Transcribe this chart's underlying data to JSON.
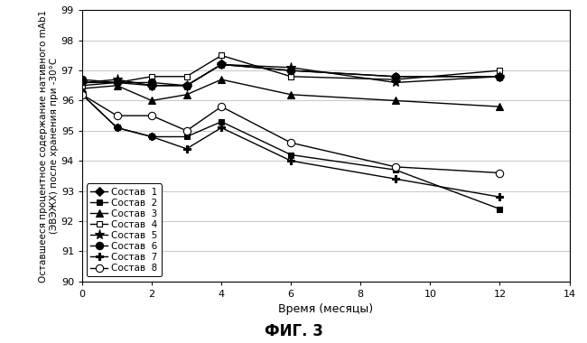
{
  "title": "ФИГ. 3",
  "xlabel": "Время (месяцы)",
  "ylabel": "Оставшееся процентное содержание нативного mAb1\n(ЭВЭЖХ) после хранения при -30°С",
  "xlim": [
    0,
    14
  ],
  "ylim": [
    90,
    99
  ],
  "xticks": [
    0,
    2,
    4,
    6,
    8,
    10,
    12,
    14
  ],
  "yticks": [
    90,
    91,
    92,
    93,
    94,
    95,
    96,
    97,
    98,
    99
  ],
  "series": [
    {
      "label": "Состав  1",
      "x": [
        0,
        1,
        2,
        3,
        4,
        6,
        9,
        12
      ],
      "y": [
        96.6,
        96.6,
        96.5,
        96.5,
        97.2,
        97.0,
        96.8,
        96.8
      ],
      "marker": "D",
      "markersize": 5,
      "markerfacecolor": "black",
      "color": "black",
      "linewidth": 1.0,
      "linestyle": "-"
    },
    {
      "label": "Состав  2",
      "x": [
        0,
        1,
        2,
        3,
        4,
        6,
        9,
        12
      ],
      "y": [
        96.2,
        95.1,
        94.8,
        94.8,
        95.3,
        94.2,
        93.7,
        92.4
      ],
      "marker": "s",
      "markersize": 5,
      "markerfacecolor": "black",
      "color": "black",
      "linewidth": 1.0,
      "linestyle": "-"
    },
    {
      "label": "Состав  3",
      "x": [
        0,
        1,
        2,
        3,
        4,
        6,
        9,
        12
      ],
      "y": [
        96.4,
        96.5,
        96.0,
        96.2,
        96.7,
        96.2,
        96.0,
        95.8
      ],
      "marker": "^",
      "markersize": 6,
      "markerfacecolor": "black",
      "color": "black",
      "linewidth": 1.0,
      "linestyle": "-"
    },
    {
      "label": "Состав  4",
      "x": [
        0,
        1,
        2,
        3,
        4,
        6,
        9,
        12
      ],
      "y": [
        96.5,
        96.6,
        96.8,
        96.8,
        97.5,
        96.8,
        96.7,
        97.0
      ],
      "marker": "s",
      "markersize": 5,
      "markerfacecolor": "white",
      "color": "black",
      "linewidth": 1.0,
      "linestyle": "-"
    },
    {
      "label": "Состав  5",
      "x": [
        0,
        1,
        2,
        3,
        4,
        6,
        9,
        12
      ],
      "y": [
        96.6,
        96.7,
        96.5,
        96.5,
        97.2,
        97.1,
        96.6,
        96.8
      ],
      "marker": "*",
      "markersize": 8,
      "markerfacecolor": "black",
      "color": "black",
      "linewidth": 1.0,
      "linestyle": "-"
    },
    {
      "label": "Состав  6",
      "x": [
        0,
        1,
        2,
        3,
        4,
        6,
        9,
        12
      ],
      "y": [
        96.7,
        96.6,
        96.6,
        96.5,
        97.2,
        97.0,
        96.8,
        96.8
      ],
      "marker": "o",
      "markersize": 6,
      "markerfacecolor": "black",
      "color": "black",
      "linewidth": 1.0,
      "linestyle": "-"
    },
    {
      "label": "Состав  7",
      "x": [
        0,
        1,
        2,
        3,
        4,
        6,
        9,
        12
      ],
      "y": [
        96.2,
        95.1,
        94.8,
        94.4,
        95.1,
        94.0,
        93.4,
        92.8
      ],
      "marker": "P",
      "markersize": 6,
      "markerfacecolor": "black",
      "color": "black",
      "linewidth": 1.0,
      "linestyle": "-"
    },
    {
      "label": "Состав  8",
      "x": [
        0,
        1,
        2,
        3,
        4,
        6,
        9,
        12
      ],
      "y": [
        96.2,
        95.5,
        95.5,
        95.0,
        95.8,
        94.6,
        93.8,
        93.6
      ],
      "marker": "o",
      "markersize": 6,
      "markerfacecolor": "white",
      "color": "black",
      "linewidth": 1.0,
      "linestyle": "-"
    }
  ],
  "legend_loc": "lower left",
  "background_color": "#ffffff",
  "grid_color": "#b0b0b0"
}
